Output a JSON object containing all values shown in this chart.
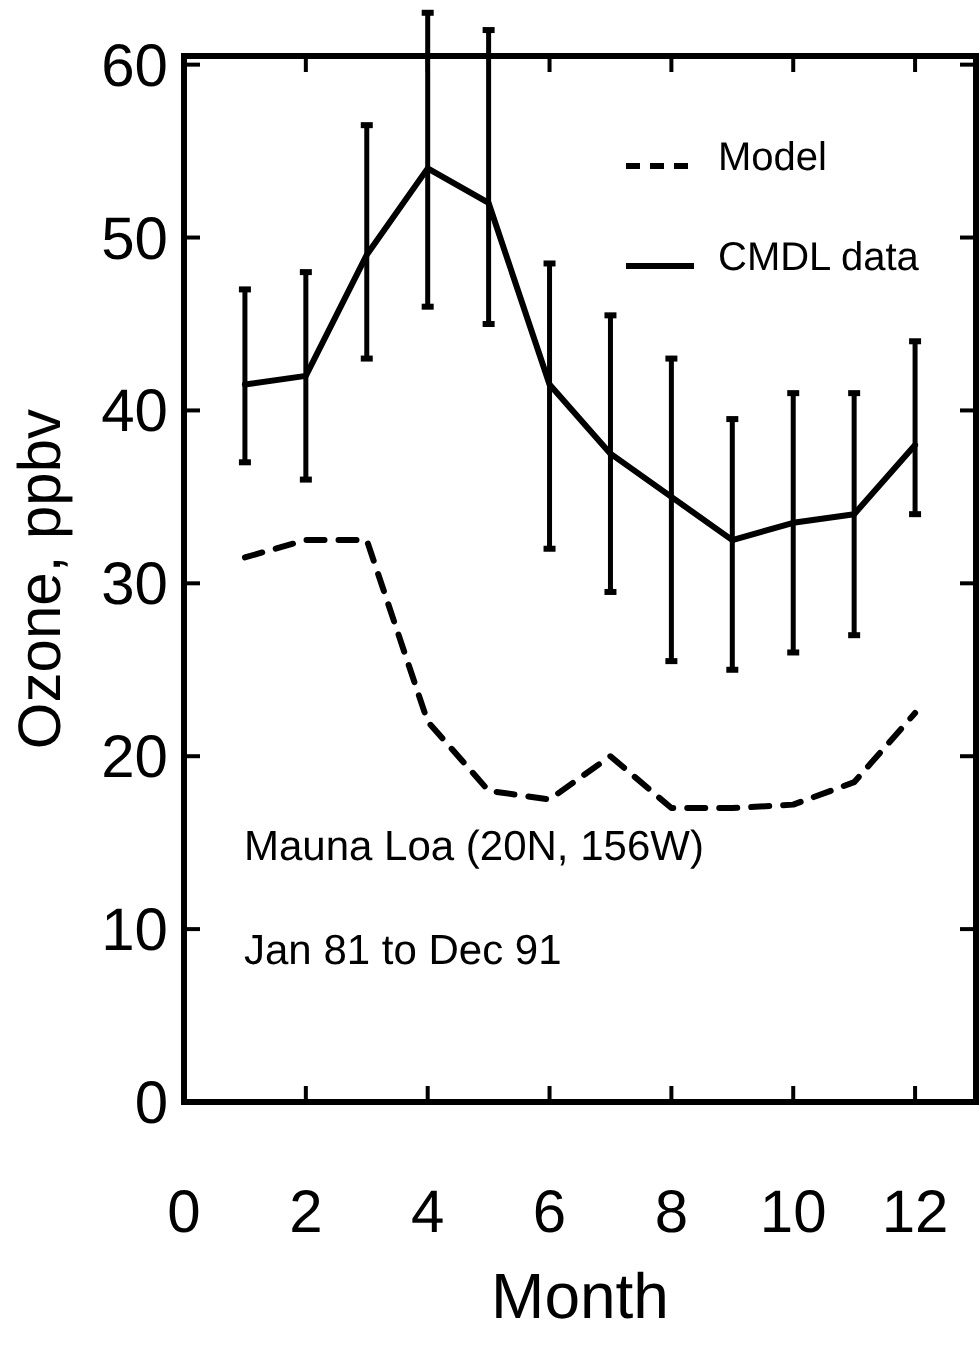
{
  "chart_data": {
    "type": "line",
    "xlabel": "Month",
    "ylabel": "Ozone, ppbv",
    "xlim": [
      0,
      13
    ],
    "xticks": [
      0,
      2,
      4,
      6,
      8,
      10,
      12
    ],
    "ylim": [
      0,
      60.5
    ],
    "yticks": [
      0,
      10,
      20,
      30,
      40,
      50,
      60
    ],
    "x": [
      1,
      2,
      3,
      4,
      5,
      6,
      7,
      8,
      9,
      10,
      11,
      12
    ],
    "legend": "top right",
    "grid": false,
    "annotations": [
      "Mauna Loa (20N, 156W)",
      "Jan 81 to Dec 91"
    ],
    "series": [
      {
        "name": "Model",
        "color": "#000000",
        "line_style": "dashed",
        "values": [
          31.5,
          32.5,
          32.5,
          22,
          18,
          17.5,
          20,
          17,
          17,
          17.2,
          18.5,
          22.5
        ]
      },
      {
        "name": "CMDL data",
        "color": "#000000",
        "line_style": "solid",
        "values": [
          41.5,
          42,
          49,
          54,
          52,
          41.5,
          37.5,
          35,
          32.5,
          33.5,
          34,
          38
        ],
        "errors": [
          [
            37,
            47
          ],
          [
            36,
            48
          ],
          [
            43,
            56.5
          ],
          [
            46,
            63
          ],
          [
            45,
            62
          ],
          [
            32,
            48.5
          ],
          [
            29.5,
            45.5
          ],
          [
            25.5,
            43
          ],
          [
            25,
            39.5
          ],
          [
            26,
            41
          ],
          [
            27,
            41
          ],
          [
            34,
            44
          ]
        ]
      }
    ]
  }
}
